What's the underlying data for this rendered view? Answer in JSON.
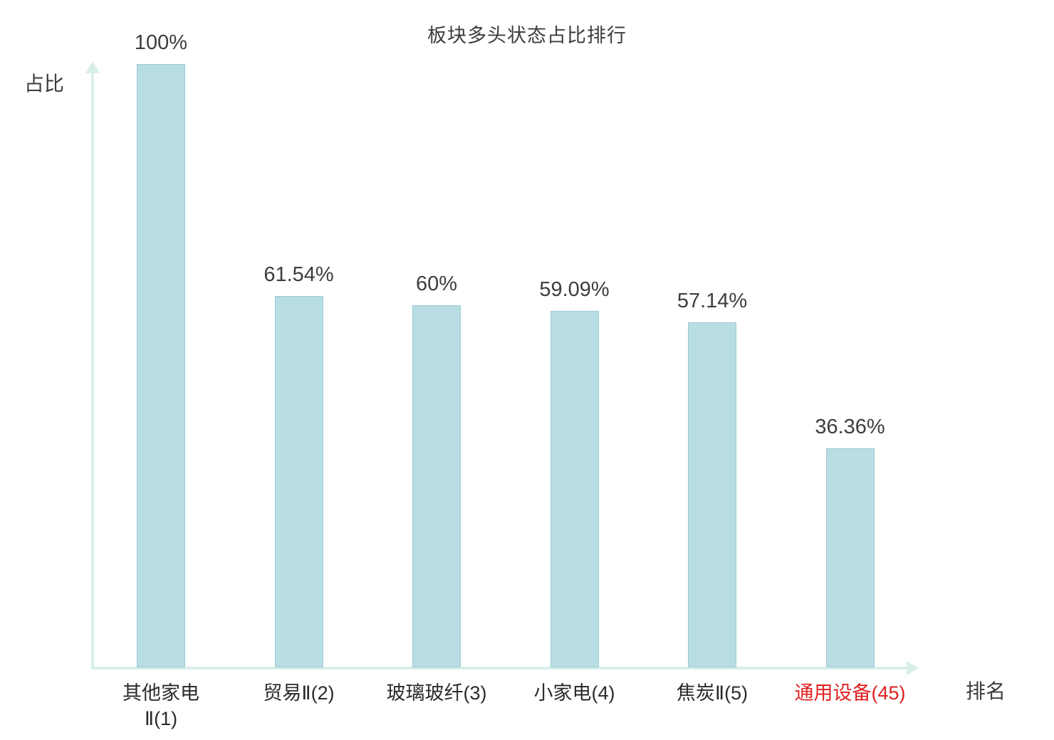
{
  "chart_data": {
    "type": "bar",
    "title": "板块多头状态占比排行",
    "ylabel": "占比",
    "xlabel": "排名",
    "categories": [
      "其他家电\nⅡ(1)",
      "贸易Ⅱ(2)",
      "玻璃玻纤(3)",
      "小家电(4)",
      "焦炭Ⅱ(5)",
      "通用设备(45)"
    ],
    "values": [
      100,
      61.54,
      60,
      59.09,
      57.14,
      36.36
    ],
    "value_labels": [
      "100%",
      "61.54%",
      "60%",
      "59.09%",
      "57.14%",
      "36.36%"
    ],
    "ylim": [
      0,
      100
    ],
    "highlight_index": 5,
    "legend": "none",
    "grid": false,
    "colors": {
      "bar_fill": "#b8dde2",
      "bar_border": "#9bcbd2",
      "axis": "#d8efe9",
      "text": "#3d3d3d",
      "highlight": "#e02020"
    }
  }
}
